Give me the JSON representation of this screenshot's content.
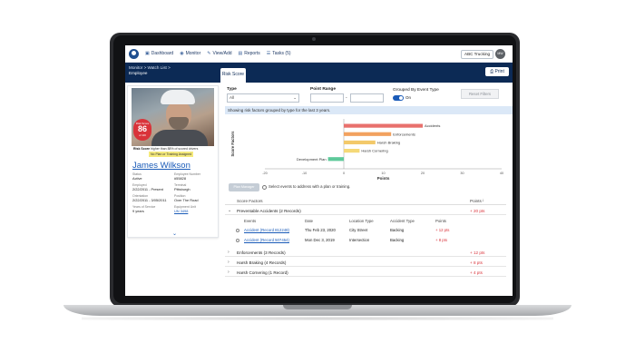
{
  "nav": {
    "items": [
      {
        "label": "Dashboard",
        "icon": "dashboard-icon"
      },
      {
        "label": "Monitor",
        "icon": "monitor-icon"
      },
      {
        "label": "View/Add",
        "icon": "view-add-icon"
      },
      {
        "label": "Reports",
        "icon": "reports-icon"
      },
      {
        "label": "Tasks (5)",
        "icon": "tasks-icon"
      }
    ],
    "company": "ABC Trucking",
    "avatar_initials": "MW"
  },
  "header": {
    "breadcrumb": "Monitor > Watch List >",
    "breadcrumb_current": "Employee",
    "tab": "Risk Score",
    "print": "Print"
  },
  "profile": {
    "score_label": "Risk Score",
    "score": "86",
    "score_of": "of 100",
    "risk_note_prefix": "Risk Score",
    "risk_note": "higher than 88% of scored drivers",
    "plan_chip": "No Plan or Training Assigned",
    "name": "James Wilkson",
    "fields": [
      {
        "k": "Status",
        "v": "Active",
        "link": false
      },
      {
        "k": "Employee Number",
        "v": "#55828",
        "link": false
      },
      {
        "k": "Employed",
        "v": "2/22/2011 - Present",
        "link": false
      },
      {
        "k": "Terminal",
        "v": "Pittsburgh",
        "link": false
      },
      {
        "k": "Orientation",
        "v": "2/22/2011 - 3/05/2011",
        "link": false
      },
      {
        "k": "Position",
        "v": "Over The Road",
        "link": false
      },
      {
        "k": "Years of Service",
        "v": "9 years",
        "link": false
      },
      {
        "k": "Equipment Unit",
        "v": "UN 3498",
        "link": true
      }
    ]
  },
  "filters": {
    "type_label": "Type",
    "type_value": "All",
    "point_range_label": "Point Range",
    "range_sep": "-",
    "grouped_label": "Grouped By Event Type",
    "grouped_state": "On",
    "reset": "Reset Filters"
  },
  "info": "Showing risk factors grouped by type for the last 3 years.",
  "chart_data": {
    "type": "bar",
    "orientation": "horizontal",
    "categories": [
      "Accidents",
      "Enforcements",
      "Harsh Braking",
      "Harsh Cornering",
      "Development Plan"
    ],
    "values": [
      20,
      12,
      8,
      4,
      -4
    ],
    "colors": [
      "#e8716d",
      "#f2a25f",
      "#f3c96a",
      "#f5d978",
      "#5ec99a"
    ],
    "xlim": [
      -20,
      40
    ],
    "xticks": [
      -20,
      -10,
      0,
      10,
      20,
      30,
      40
    ],
    "xlabel": "Points",
    "ylabel": "Score Factors"
  },
  "plan": {
    "button": "Plan Manager",
    "text": "Select events to address with a plan or training."
  },
  "table": {
    "col_factors": "Score Factors",
    "col_points": "Points",
    "sort_icon": "sort-arrow-icon",
    "groups": [
      {
        "name": "Preventable Accidents (2 Records)",
        "points": "+ 20 pts",
        "expanded": true
      },
      {
        "name": "Enforcements (3 Records)",
        "points": "+ 12 pts",
        "expanded": false
      },
      {
        "name": "Harsh Braking (4 Records)",
        "points": "+ 8 pts",
        "expanded": false
      },
      {
        "name": "Harsh Cornering (1 Record)",
        "points": "+ 4 pts",
        "expanded": false
      }
    ],
    "sub_headers": {
      "events": "Events",
      "date": "Date",
      "location": "Location Type",
      "accident": "Accident Type",
      "points": "Points"
    },
    "events": [
      {
        "event": "Accident (Record 812248)",
        "date": "Thu Feb 23, 2020",
        "location": "City Street",
        "accident": "Backing",
        "points": "+ 12 pts"
      },
      {
        "event": "Accident (Record 507454)",
        "date": "Mon Dec 3, 2019",
        "location": "Intersection",
        "accident": "Backing",
        "points": "+ 8 pts"
      }
    ]
  }
}
